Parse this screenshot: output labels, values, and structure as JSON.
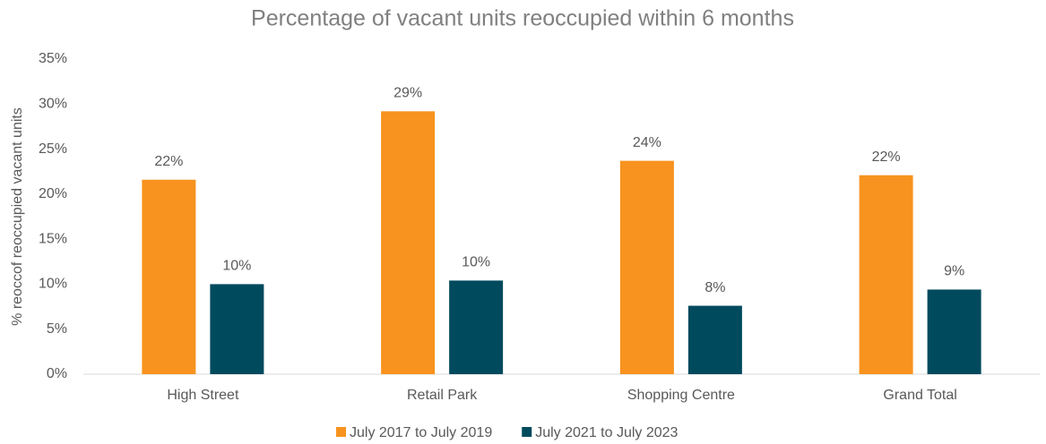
{
  "chart_data": {
    "type": "bar",
    "title": "Percentage of vacant units reoccupied within 6 months",
    "y_label": "% reoccof reoccupied vacant units",
    "categories": [
      "High Street",
      "Retail Park",
      "Shopping Centre",
      "Grand Total"
    ],
    "series": [
      {
        "name": "July 2017 to July 2019",
        "color": "#f7931e",
        "values": [
          21.6,
          29.2,
          23.7,
          22.1
        ],
        "value_labels": [
          "22%",
          "29%",
          "24%",
          "22%"
        ]
      },
      {
        "name": "July 2021 to July 2023",
        "color": "#004a5e",
        "values": [
          10.0,
          10.4,
          7.6,
          9.4
        ],
        "value_labels": [
          "10%",
          "10%",
          "8%",
          "9%"
        ]
      }
    ],
    "ylim": [
      0,
      35
    ],
    "yticks": [
      {
        "value": 0,
        "label": "0%"
      },
      {
        "value": 5,
        "label": "5%"
      },
      {
        "value": 10,
        "label": "10%"
      },
      {
        "value": 15,
        "label": "15%"
      },
      {
        "value": 20,
        "label": "20%"
      },
      {
        "value": 25,
        "label": "25%"
      },
      {
        "value": 30,
        "label": "30%"
      },
      {
        "value": 35,
        "label": "35%"
      }
    ],
    "grid": false,
    "legend": "bottom"
  }
}
